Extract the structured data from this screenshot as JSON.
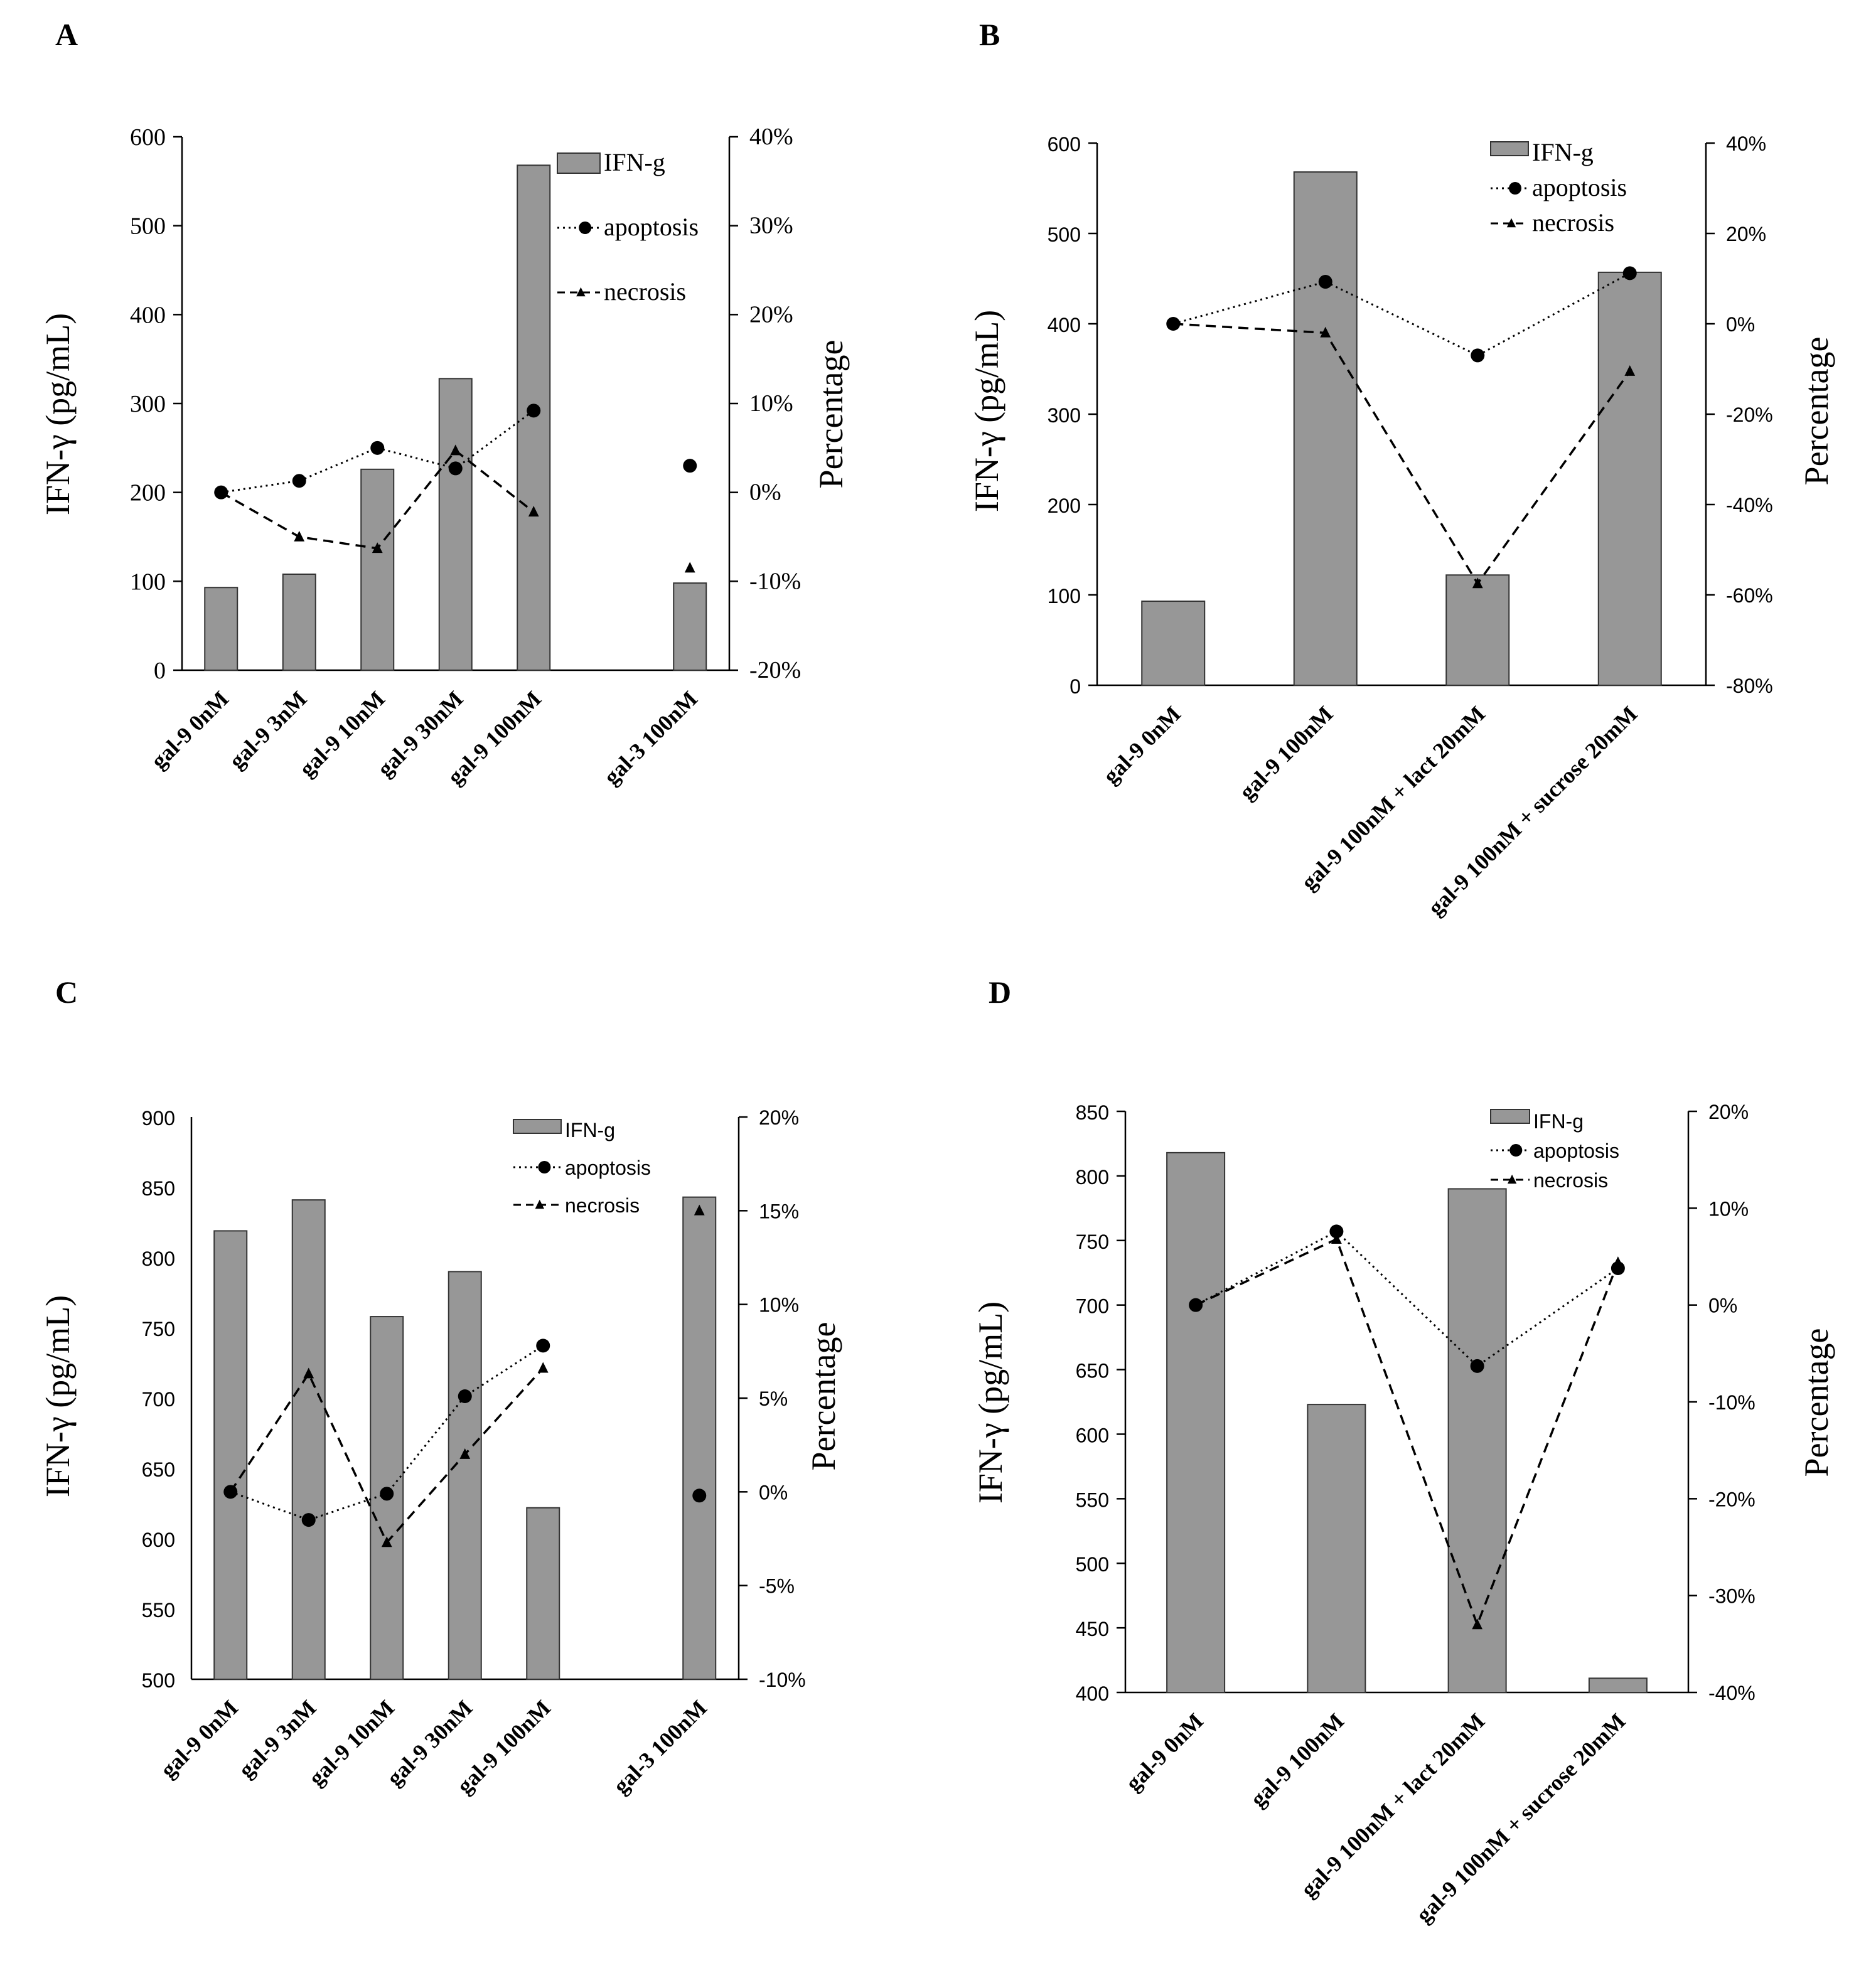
{
  "panels": [
    {
      "letter": "A",
      "chart_data": {
        "type": "bar",
        "categories": [
          "gal-9 0nM",
          "gal-9 3nM",
          "gal-9 10nM",
          "gal-9 30nM",
          "gal-9 100nM",
          "",
          "gal-3 100nM"
        ],
        "series": [
          {
            "name": "IFN-g",
            "type": "bar",
            "axis": "left",
            "values": [
              93,
              108,
              226,
              328,
              568,
              null,
              98
            ]
          },
          {
            "name": "apoptosis",
            "type": "line",
            "axis": "right",
            "style": "dotted",
            "marker": "circle",
            "values": [
              0.0,
              1.3,
              5.0,
              2.7,
              9.2,
              null,
              3.0
            ]
          },
          {
            "name": "necrosis",
            "type": "line",
            "axis": "right",
            "style": "dashed",
            "marker": "triangle",
            "values": [
              0.0,
              -5.0,
              -6.3,
              4.7,
              -2.2,
              null,
              -8.5
            ]
          }
        ],
        "ylabel": "IFN-γ (pg/mL)",
        "y2label": "Percentage",
        "ylim": [
          0,
          600
        ],
        "y2lim": [
          -20,
          40
        ],
        "yticks": [
          "0",
          "100",
          "200",
          "300",
          "400",
          "500",
          "600"
        ],
        "y2ticks": [
          "-20%",
          "-10%",
          "0%",
          "10%",
          "20%",
          "30%",
          "40%"
        ],
        "legend": [
          "IFN-g",
          "apoptosis",
          "necrosis"
        ]
      }
    },
    {
      "letter": "B",
      "chart_data": {
        "type": "bar",
        "categories": [
          "gal-9 0nM",
          "gal-9 100nM",
          "gal-9 100nM + lact 20mM",
          "gal-9 100nM + sucrose 20mM"
        ],
        "series": [
          {
            "name": "IFN-g",
            "type": "bar",
            "axis": "left",
            "values": [
              93,
              568,
              122,
              457
            ]
          },
          {
            "name": "apoptosis",
            "type": "line",
            "axis": "right",
            "style": "dotted",
            "marker": "circle",
            "values": [
              0.0,
              9.3,
              -7.0,
              11.2
            ]
          },
          {
            "name": "necrosis",
            "type": "line",
            "axis": "right",
            "style": "dashed",
            "marker": "triangle",
            "values": [
              0.0,
              -2.0,
              -57.5,
              -10.5
            ]
          }
        ],
        "ylabel": "IFN-γ (pg/mL)",
        "y2label": "Percentage",
        "ylim": [
          0,
          600
        ],
        "y2lim": [
          -80,
          40
        ],
        "yticks": [
          "0",
          "100",
          "200",
          "300",
          "400",
          "500",
          "600"
        ],
        "y2ticks": [
          "-80%",
          "-60%",
          "-40%",
          "-20%",
          "0%",
          "20%",
          "40%"
        ],
        "legend": [
          "IFN-g",
          "apoptosis",
          "necrosis"
        ]
      }
    },
    {
      "letter": "C",
      "chart_data": {
        "type": "bar",
        "categories": [
          "gal-9 0nM",
          "gal-9 3nM",
          "gal-9 10nM",
          "gal-9 30nM",
          "gal-9 100nM",
          "",
          "gal-3 100nM"
        ],
        "series": [
          {
            "name": "IFN-g",
            "type": "bar",
            "axis": "left",
            "values": [
              819,
              841,
              758,
              790,
              622,
              null,
              843
            ]
          },
          {
            "name": "apoptosis",
            "type": "line",
            "axis": "right",
            "style": "dotted",
            "marker": "circle",
            "values": [
              0.0,
              -1.5,
              -0.1,
              5.1,
              7.8,
              null,
              -0.2
            ]
          },
          {
            "name": "necrosis",
            "type": "line",
            "axis": "right",
            "style": "dashed",
            "marker": "triangle",
            "values": [
              0.0,
              6.3,
              -2.7,
              2.0,
              6.6,
              null,
              15.0
            ]
          }
        ],
        "ylabel": "IFN-γ (pg/mL)",
        "y2label": "Percentage",
        "ylim": [
          500,
          900
        ],
        "y2lim": [
          -10,
          20
        ],
        "yticks": [
          "500",
          "550",
          "600",
          "650",
          "700",
          "750",
          "800",
          "850",
          "900"
        ],
        "y2ticks": [
          "-10%",
          "-5%",
          "0%",
          "5%",
          "10%",
          "15%",
          "20%"
        ],
        "legend": [
          "IFN-g",
          "apoptosis",
          "necrosis"
        ]
      }
    },
    {
      "letter": "D",
      "chart_data": {
        "type": "bar",
        "categories": [
          "gal-9 0nM",
          "gal-9 100nM",
          "gal-9 100nM + lact 20mM",
          "gal-9 100nM + sucrose 20mM"
        ],
        "series": [
          {
            "name": "IFN-g",
            "type": "bar",
            "axis": "left",
            "values": [
              818,
              623,
              790,
              411
            ]
          },
          {
            "name": "apoptosis",
            "type": "line",
            "axis": "right",
            "style": "dotted",
            "marker": "circle",
            "values": [
              0.0,
              7.6,
              -6.3,
              3.8
            ]
          },
          {
            "name": "necrosis",
            "type": "line",
            "axis": "right",
            "style": "dashed",
            "marker": "triangle",
            "values": [
              0.0,
              6.8,
              -33.0,
              4.4
            ]
          }
        ],
        "ylabel": "IFN-γ (pg/mL)",
        "y2label": "Percentage",
        "ylim": [
          400,
          850
        ],
        "y2lim": [
          -40,
          20
        ],
        "yticks": [
          "400",
          "450",
          "500",
          "550",
          "600",
          "650",
          "700",
          "750",
          "800",
          "850"
        ],
        "y2ticks": [
          "-40%",
          "-30%",
          "-20%",
          "-10%",
          "0%",
          "10%",
          "20%"
        ],
        "legend": [
          "IFN-g",
          "apoptosis",
          "necrosis"
        ]
      }
    }
  ]
}
